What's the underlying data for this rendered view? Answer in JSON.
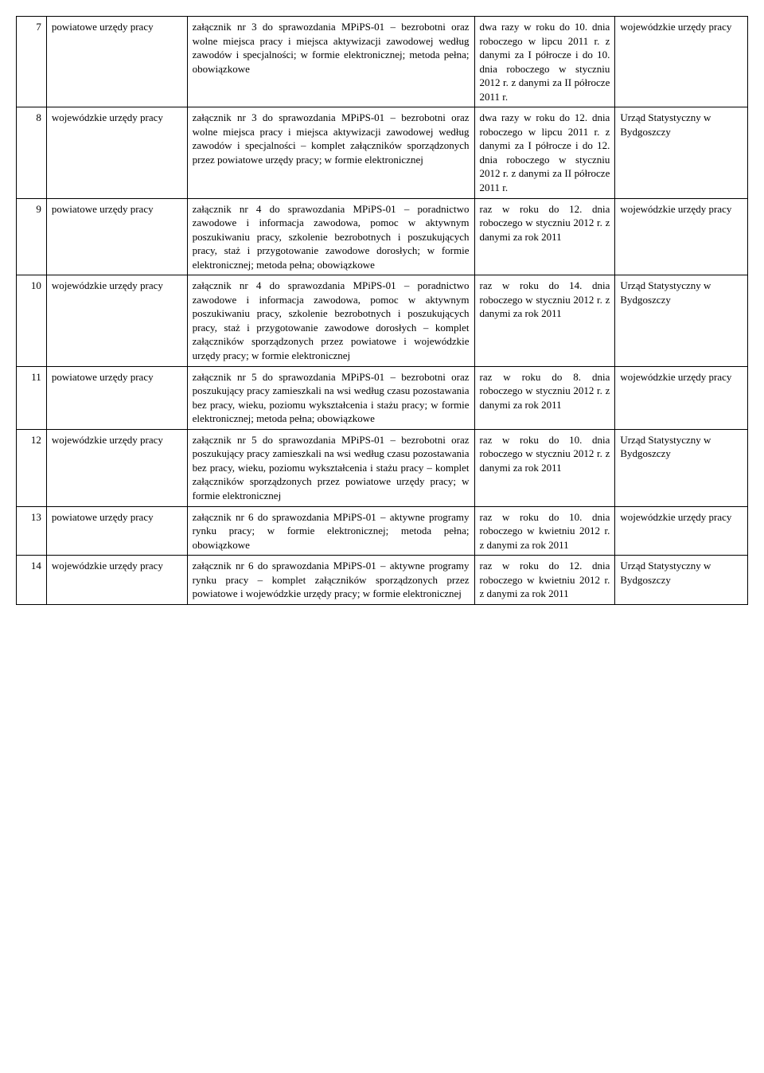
{
  "rows": [
    {
      "num": "7",
      "col2": "powiatowe urzędy pracy",
      "col3": "załącznik nr 3 do sprawozdania MPiPS-01 – bezrobotni oraz wolne miejsca pracy i miejsca aktywizacji zawodowej według zawodów i specjalności; w formie elektronicznej; metoda pełna; obowiązkowe",
      "col4": "dwa razy w roku do 10. dnia roboczego w lipcu 2011 r. z danymi za I półrocze i do 10. dnia roboczego w styczniu 2012 r. z danymi za II półrocze 2011 r.",
      "col5": "wojewódzkie urzędy pracy"
    },
    {
      "num": "8",
      "col2": "wojewódzkie urzędy pracy",
      "col3": "załącznik nr 3 do sprawozdania MPiPS-01 – bezrobotni oraz wolne miejsca pracy i miejsca aktywizacji zawodowej według zawodów i specjalności – komplet załączników sporządzonych przez powiatowe urzędy pracy; w formie elektronicznej",
      "col4": "dwa razy w roku do 12. dnia roboczego w lipcu 2011 r. z danymi za I półrocze i do 12. dnia roboczego w styczniu 2012 r. z danymi za II półrocze 2011 r.",
      "col5": "Urząd Statystyczny w Bydgoszczy"
    },
    {
      "num": "9",
      "col2": "powiatowe urzędy pracy",
      "col3": "załącznik nr 4 do sprawozdania MPiPS-01 – poradnictwo zawodowe i informacja zawodowa, pomoc w aktywnym poszukiwaniu pracy, szkolenie bezrobotnych i poszukujących pracy, staż i przygotowanie zawodowe dorosłych; w formie elektronicznej; metoda pełna; obowiązkowe",
      "col4": "raz w roku do 12. dnia roboczego w styczniu 2012 r. z danymi za rok 2011",
      "col5": "wojewódzkie urzędy pracy"
    },
    {
      "num": "10",
      "col2": "wojewódzkie urzędy pracy",
      "col3": "załącznik nr 4 do sprawozdania MPiPS-01 – poradnictwo zawodowe i informacja zawodowa, pomoc w aktywnym poszukiwaniu pracy, szkolenie bezrobotnych i poszukujących pracy, staż i przygotowanie zawodowe dorosłych – komplet załączników sporządzonych przez powiatowe i wojewódzkie urzędy pracy; w formie elektronicznej",
      "col4": "raz w roku do 14. dnia roboczego w styczniu 2012 r. z danymi za rok 2011",
      "col5": "Urząd Statystyczny w Bydgoszczy"
    },
    {
      "num": "11",
      "col2": "powiatowe urzędy pracy",
      "col3": "załącznik nr 5 do sprawozdania MPiPS-01 – bezrobotni oraz poszukujący pracy zamieszkali na wsi według czasu pozostawania bez pracy, wieku, poziomu wykształcenia i stażu pracy; w formie elektronicznej; metoda pełna; obowiązkowe",
      "col4": "raz w roku do 8. dnia roboczego w styczniu 2012 r. z danymi za rok 2011",
      "col5": "wojewódzkie urzędy pracy"
    },
    {
      "num": "12",
      "col2": "wojewódzkie urzędy pracy",
      "col3": "załącznik nr 5 do sprawozdania MPiPS-01 – bezrobotni oraz poszukujący pracy zamieszkali na wsi według czasu pozostawania bez pracy, wieku, poziomu wykształcenia i stażu pracy – komplet załączników sporządzonych przez powiatowe urzędy pracy; w formie elektronicznej",
      "col4": "raz w roku do 10. dnia roboczego w styczniu 2012 r. z danymi za rok 2011",
      "col5": "Urząd Statystyczny w Bydgoszczy"
    },
    {
      "num": "13",
      "col2": "powiatowe urzędy pracy",
      "col3": "załącznik nr 6 do sprawozdania MPiPS-01 – aktywne programy rynku pracy; w formie elektronicznej; metoda pełna; obowiązkowe",
      "col4": "raz w roku do 10. dnia roboczego w kwietniu 2012 r. z danymi za rok 2011",
      "col5": "wojewódzkie urzędy pracy"
    },
    {
      "num": "14",
      "col2": "wojewódzkie urzędy pracy",
      "col3": "załącznik nr 6 do sprawozdania MPiPS-01 – aktywne programy rynku pracy – komplet załączników sporządzonych przez powiatowe i wojewódzkie urzędy pracy; w formie elektronicznej",
      "col4": "raz w roku do 12. dnia roboczego w kwietniu 2012 r. z danymi za rok 2011",
      "col5": "Urząd Statystyczny w Bydgoszczy"
    }
  ]
}
